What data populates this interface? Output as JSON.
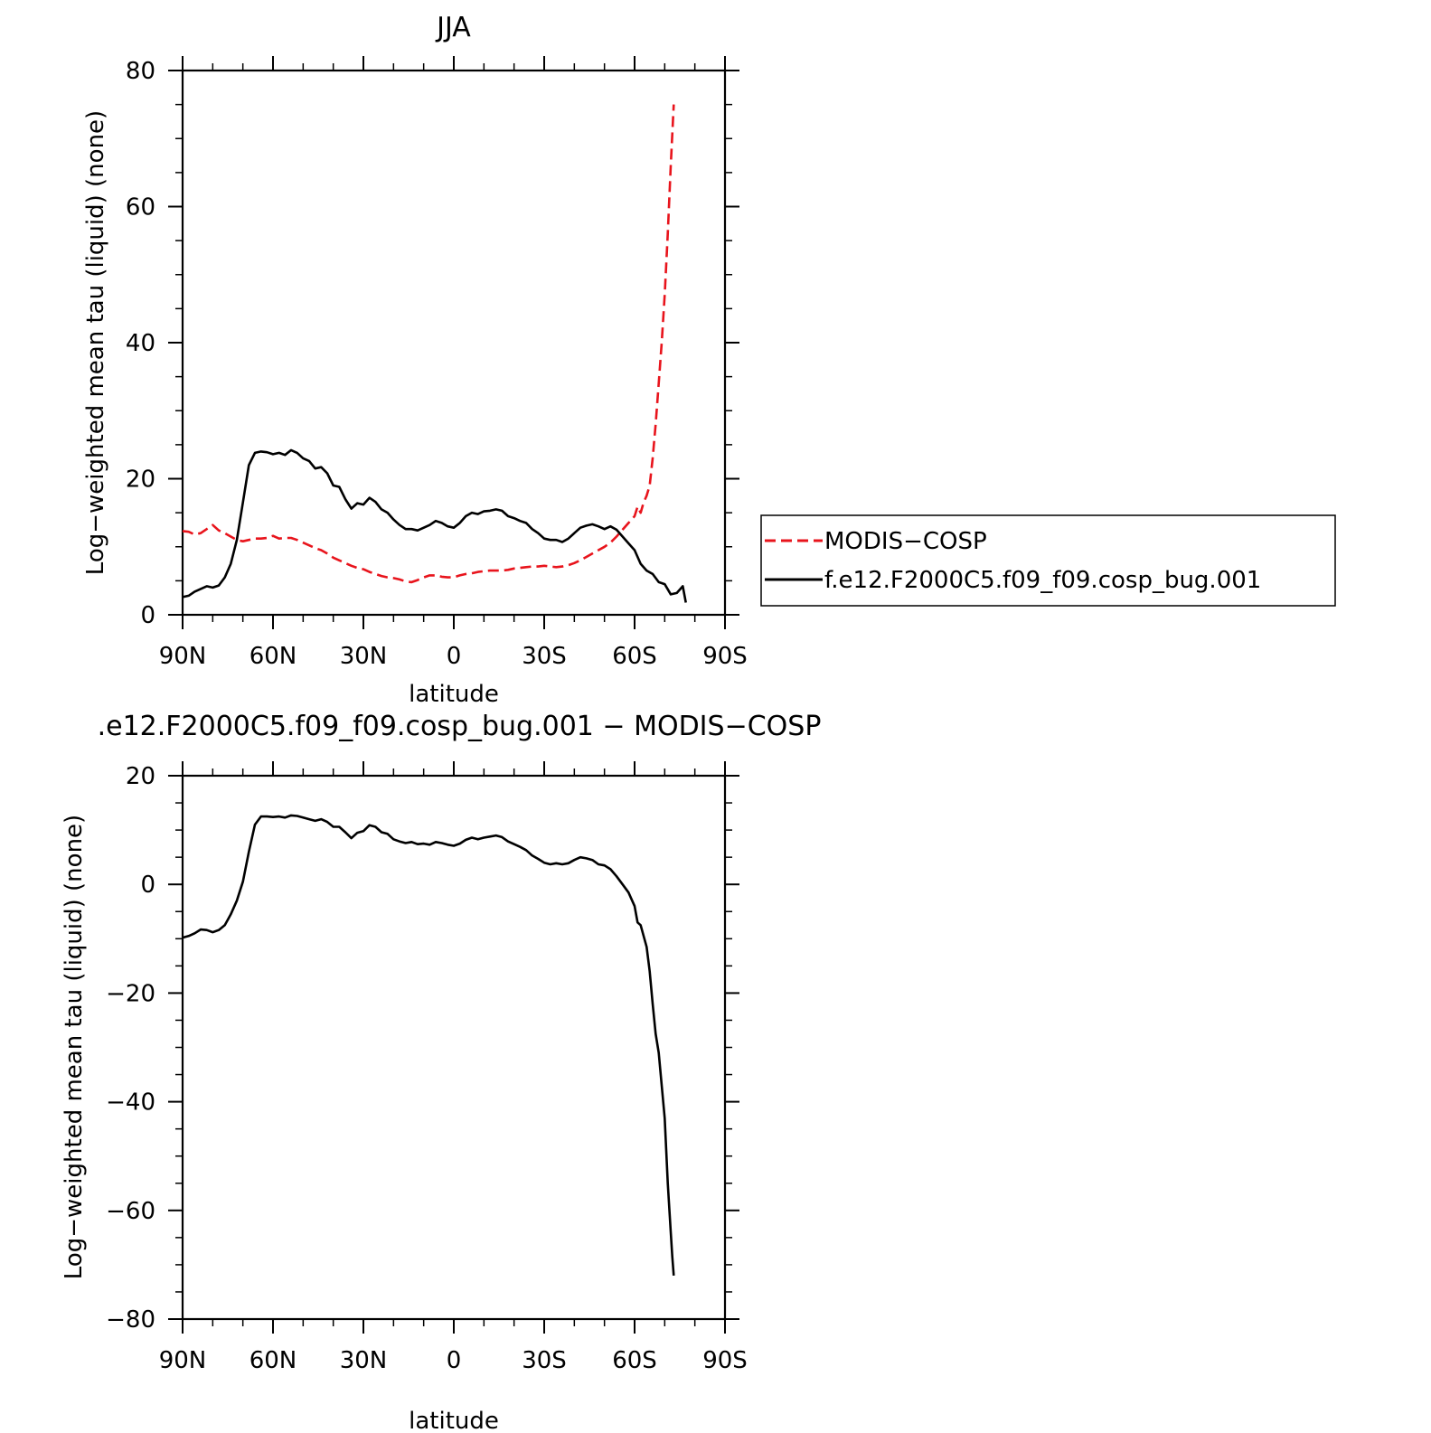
{
  "chart_data": [
    {
      "type": "line",
      "title": "JJA",
      "xlabel": "latitude",
      "ylabel": "Log−weighted mean tau (liquid) (none)",
      "xlim": [
        90,
        -90
      ],
      "ylim": [
        0,
        80
      ],
      "x_ticks": [
        90,
        60,
        30,
        0,
        -30,
        -60,
        -90
      ],
      "x_tick_labels": [
        "90N",
        "60N",
        "30N",
        "0",
        "30S",
        "60S",
        "90S"
      ],
      "y_ticks": [
        0,
        20,
        40,
        60,
        80
      ],
      "y_tick_labels": [
        "0",
        "20",
        "40",
        "60",
        "80"
      ],
      "legend_position": "right",
      "series": [
        {
          "name": "MODIS−COSP",
          "color": "#e8141c",
          "dash": "dashed",
          "x": [
            90,
            88,
            86,
            84,
            82,
            80,
            78,
            76,
            74,
            72,
            70,
            68,
            66,
            64,
            62,
            60,
            58,
            56,
            54,
            52,
            50,
            48,
            46,
            44,
            42,
            40,
            38,
            36,
            34,
            32,
            30,
            28,
            26,
            24,
            22,
            20,
            18,
            16,
            14,
            12,
            10,
            8,
            6,
            4,
            2,
            0,
            -2,
            -4,
            -6,
            -8,
            -10,
            -12,
            -14,
            -16,
            -18,
            -20,
            -22,
            -24,
            -26,
            -28,
            -30,
            -32,
            -34,
            -36,
            -38,
            -40,
            -42,
            -44,
            -46,
            -48,
            -50,
            -52,
            -54,
            -56,
            -58,
            -60,
            -61,
            -62,
            -63,
            -64,
            -65,
            -66,
            -67,
            -68,
            -69,
            -70,
            -71,
            -72,
            -73
          ],
          "y": [
            12.3,
            12.2,
            11.8,
            12.0,
            12.6,
            13.2,
            12.4,
            12.0,
            11.5,
            11.0,
            10.8,
            11.0,
            11.2,
            11.2,
            11.3,
            11.6,
            11.2,
            11.3,
            11.3,
            11.0,
            10.6,
            10.2,
            9.8,
            9.5,
            9.0,
            8.4,
            8.0,
            7.6,
            7.2,
            6.9,
            6.7,
            6.3,
            6.0,
            5.7,
            5.5,
            5.4,
            5.2,
            4.9,
            4.8,
            5.1,
            5.5,
            5.8,
            5.8,
            5.6,
            5.5,
            5.5,
            5.8,
            6.0,
            6.1,
            6.3,
            6.4,
            6.5,
            6.5,
            6.5,
            6.6,
            6.8,
            6.9,
            7.0,
            7.1,
            7.1,
            7.2,
            7.1,
            7.0,
            7.1,
            7.3,
            7.6,
            8.0,
            8.5,
            9.0,
            9.5,
            10.0,
            10.6,
            11.5,
            12.5,
            13.5,
            14.5,
            15.9,
            15.0,
            16.5,
            17.5,
            19.0,
            23.0,
            28.0,
            34.0,
            40.0,
            47.0,
            56.0,
            66.0,
            75.0
          ]
        },
        {
          "name": "f.e12.F2000C5.f09_f09.cosp_bug.001",
          "color": "#000000",
          "dash": "solid",
          "x": [
            90,
            88,
            86,
            84,
            82,
            80,
            78,
            76,
            74,
            72,
            70,
            68,
            66,
            64,
            62,
            60,
            58,
            56,
            54,
            52,
            50,
            48,
            46,
            44,
            42,
            40,
            38,
            36,
            34,
            32,
            30,
            28,
            26,
            24,
            22,
            20,
            18,
            16,
            14,
            12,
            10,
            8,
            6,
            4,
            2,
            0,
            -2,
            -4,
            -6,
            -8,
            -10,
            -12,
            -14,
            -16,
            -18,
            -20,
            -22,
            -24,
            -26,
            -28,
            -30,
            -32,
            -34,
            -36,
            -38,
            -40,
            -42,
            -44,
            -46,
            -48,
            -50,
            -52,
            -54,
            -56,
            -58,
            -60,
            -62,
            -64,
            -66,
            -68,
            -70,
            -72,
            -74,
            -76,
            -77
          ],
          "y": [
            2.6,
            2.8,
            3.4,
            3.8,
            4.2,
            4.0,
            4.3,
            5.5,
            7.5,
            11.0,
            16.5,
            22.0,
            23.8,
            24.0,
            23.9,
            23.6,
            23.8,
            23.5,
            24.2,
            23.8,
            23.0,
            22.6,
            21.5,
            21.7,
            20.8,
            19.0,
            18.8,
            17.0,
            15.6,
            16.4,
            16.2,
            17.2,
            16.6,
            15.5,
            15.0,
            14.0,
            13.2,
            12.6,
            12.6,
            12.4,
            12.8,
            13.2,
            13.8,
            13.5,
            13.0,
            12.8,
            13.5,
            14.5,
            15.0,
            14.8,
            15.2,
            15.3,
            15.5,
            15.3,
            14.5,
            14.2,
            13.8,
            13.5,
            12.6,
            12.0,
            11.2,
            11.0,
            11.0,
            10.7,
            11.2,
            12.0,
            12.8,
            13.1,
            13.3,
            13.0,
            12.6,
            13.0,
            12.5,
            11.5,
            10.5,
            9.5,
            7.5,
            6.5,
            6.0,
            4.8,
            4.5,
            3.0,
            3.2,
            4.2,
            1.8
          ]
        }
      ]
    },
    {
      "type": "line",
      "title": ".e12.F2000C5.f09_f09.cosp_bug.001 − MODIS−COSP",
      "xlabel": "latitude",
      "ylabel": "Log−weighted mean tau (liquid) (none)",
      "xlim": [
        90,
        -90
      ],
      "ylim": [
        -80,
        20
      ],
      "x_ticks": [
        90,
        60,
        30,
        0,
        -30,
        -60,
        -90
      ],
      "x_tick_labels": [
        "90N",
        "60N",
        "30N",
        "0",
        "30S",
        "60S",
        "90S"
      ],
      "y_ticks": [
        -80,
        -60,
        -40,
        -20,
        0,
        20
      ],
      "y_tick_labels": [
        "−80",
        "−60",
        "−40",
        "−20",
        "0",
        "20"
      ],
      "series": [
        {
          "color": "#000000",
          "dash": "solid",
          "x": [
            90,
            88,
            86,
            84,
            82,
            80,
            78,
            76,
            74,
            72,
            70,
            68,
            66,
            64,
            62,
            60,
            58,
            56,
            54,
            52,
            50,
            48,
            46,
            44,
            42,
            40,
            38,
            36,
            34,
            32,
            30,
            28,
            26,
            24,
            22,
            20,
            18,
            16,
            14,
            12,
            10,
            8,
            6,
            4,
            2,
            0,
            -2,
            -4,
            -6,
            -8,
            -10,
            -12,
            -14,
            -16,
            -18,
            -20,
            -22,
            -24,
            -26,
            -28,
            -30,
            -32,
            -34,
            -36,
            -38,
            -40,
            -42,
            -44,
            -46,
            -48,
            -50,
            -52,
            -54,
            -56,
            -58,
            -60,
            -61,
            -62,
            -63,
            -64,
            -65,
            -66,
            -67,
            -68,
            -69,
            -70,
            -71,
            -72,
            -72.5,
            -73
          ],
          "y": [
            -9.8,
            -9.5,
            -9.0,
            -8.3,
            -8.4,
            -8.8,
            -8.4,
            -7.5,
            -5.5,
            -3.0,
            0.5,
            6.0,
            11.0,
            12.5,
            12.5,
            12.4,
            12.5,
            12.3,
            12.7,
            12.6,
            12.3,
            12.0,
            11.7,
            12.0,
            11.5,
            10.6,
            10.6,
            9.6,
            8.5,
            9.5,
            9.8,
            10.9,
            10.6,
            9.6,
            9.3,
            8.3,
            7.9,
            7.6,
            7.8,
            7.4,
            7.5,
            7.3,
            7.8,
            7.6,
            7.3,
            7.1,
            7.5,
            8.2,
            8.6,
            8.3,
            8.6,
            8.8,
            9.0,
            8.7,
            7.9,
            7.4,
            6.9,
            6.3,
            5.3,
            4.7,
            4.0,
            3.7,
            3.9,
            3.7,
            3.9,
            4.5,
            5.0,
            4.8,
            4.5,
            3.7,
            3.5,
            2.8,
            1.5,
            0.0,
            -1.5,
            -4.0,
            -7.0,
            -7.5,
            -9.5,
            -11.5,
            -16.0,
            -22.0,
            -27.5,
            -31.0,
            -37.0,
            -43.0,
            -55.0,
            -64.0,
            -68.5,
            -72.0
          ]
        }
      ]
    }
  ]
}
